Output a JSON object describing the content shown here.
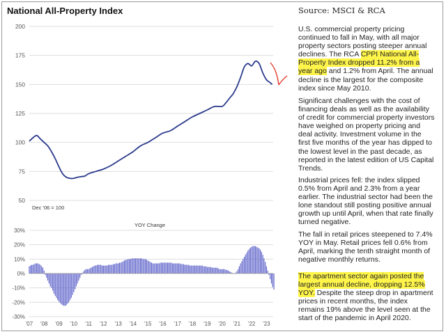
{
  "title": "National All-Property Index",
  "source": "Source: MSCI & RCA",
  "colors": {
    "line": "#2a3a8c",
    "bars": "#5a5fc8",
    "annotation_arrow": "#e03020",
    "highlight": "#fff54a",
    "grid": "#dddddd",
    "axis_text": "#555555"
  },
  "chart_data": [
    {
      "type": "line",
      "title": "National All-Property Index",
      "base_note": "Dec '06 = 100",
      "ylim": [
        50,
        200
      ],
      "yticks": [
        50,
        75,
        100,
        125,
        150,
        175,
        200
      ],
      "grid": true,
      "x": [
        2007.0,
        2007.25,
        2007.5,
        2007.75,
        2008.0,
        2008.25,
        2008.5,
        2008.75,
        2009.0,
        2009.25,
        2009.5,
        2009.75,
        2010.0,
        2010.25,
        2010.5,
        2010.75,
        2011.0,
        2011.5,
        2012.0,
        2012.5,
        2013.0,
        2013.5,
        2014.0,
        2014.5,
        2015.0,
        2015.5,
        2016.0,
        2016.5,
        2017.0,
        2017.5,
        2018.0,
        2018.5,
        2019.0,
        2019.5,
        2020.0,
        2020.25,
        2020.5,
        2020.75,
        2021.0,
        2021.25,
        2021.5,
        2021.75,
        2022.0,
        2022.25,
        2022.5,
        2022.75,
        2023.0,
        2023.2,
        2023.38
      ],
      "y": [
        101,
        104,
        106,
        103,
        100,
        97,
        92,
        86,
        79,
        73,
        70,
        69,
        69,
        70,
        70.5,
        71,
        73,
        75,
        77,
        80,
        84,
        88,
        92,
        97,
        100,
        104,
        108,
        110,
        114,
        118,
        122,
        125,
        128,
        131,
        131,
        134,
        138,
        142,
        148,
        156,
        165,
        168,
        166,
        170,
        168,
        160,
        154,
        152,
        150
      ]
    },
    {
      "type": "bar",
      "title": "YOY Change",
      "ylim": [
        -30,
        30
      ],
      "yticks": [
        -30,
        -20,
        -10,
        0,
        10,
        20,
        30
      ],
      "ytick_labels": [
        "-30%",
        "-20%",
        "-10%",
        "0%",
        "10%",
        "20%",
        "30%"
      ],
      "grid": true,
      "xticks": [
        2007,
        2008,
        2009,
        2010,
        2011,
        2012,
        2013,
        2014,
        2015,
        2016,
        2017,
        2018,
        2019,
        2020,
        2021,
        2022,
        2023
      ],
      "xtick_labels": [
        "'07",
        "'08",
        "'09",
        "'10",
        "'11",
        "'12",
        "'13",
        "'14",
        "'15",
        "'16",
        "'17",
        "'18",
        "'19",
        "'20",
        "'21",
        "'22",
        "'23"
      ],
      "start": 2007.0,
      "step_months": 1,
      "bar_color": "#5a5fc8",
      "values": [
        5,
        5.5,
        6,
        6,
        6.5,
        7,
        7,
        7,
        6.5,
        6,
        5,
        4,
        2,
        -1,
        -3,
        -5,
        -7,
        -9,
        -10,
        -12,
        -14,
        -15.5,
        -17,
        -18.5,
        -19.5,
        -20.5,
        -21.5,
        -22,
        -22.5,
        -22.5,
        -22,
        -21,
        -20,
        -18.5,
        -17,
        -15,
        -13,
        -11,
        -9,
        -7,
        -5,
        -3,
        -1,
        0.5,
        1.5,
        2.5,
        3,
        3,
        3,
        3.5,
        4,
        4.5,
        5,
        5.5,
        5.5,
        6,
        6,
        6,
        6,
        5.5,
        5.5,
        5.5,
        5.5,
        5.5,
        6,
        6,
        6,
        6,
        6.5,
        6.5,
        7,
        7,
        7,
        7.5,
        7.5,
        8,
        8.5,
        9,
        9.5,
        9.5,
        10,
        10,
        10,
        10.5,
        10.5,
        10.5,
        10.5,
        10.5,
        10.5,
        10.5,
        10.5,
        10.5,
        10,
        10,
        10,
        9.5,
        9,
        8.5,
        8,
        7.5,
        7,
        7,
        7,
        7,
        7,
        7,
        7.5,
        7.5,
        7.5,
        7.5,
        7.5,
        7.5,
        7.5,
        7.5,
        7.5,
        7.5,
        7,
        7,
        7,
        7,
        7,
        7,
        7,
        6.5,
        6.5,
        6.5,
        6,
        6,
        6,
        6,
        5.5,
        5.5,
        5.5,
        5.5,
        5.5,
        5.5,
        5.5,
        5.5,
        5.5,
        5.5,
        5.5,
        5,
        5,
        5,
        4.5,
        4.5,
        4.5,
        4.5,
        4,
        4,
        4,
        4,
        4,
        3.5,
        3,
        3,
        3,
        3,
        3,
        2.5,
        2.5,
        2,
        1.5,
        1,
        0.5,
        0,
        0,
        0.5,
        1.5,
        3,
        5,
        7,
        8.5,
        10,
        11.5,
        13,
        14.5,
        16,
        17,
        18,
        18.5,
        19,
        19,
        19,
        18.5,
        18,
        17.5,
        16.5,
        15,
        13,
        10.5,
        8,
        5,
        2,
        -1,
        -4,
        -7,
        -9.5,
        -11.2
      ]
    }
  ],
  "notes": [
    {
      "segments": [
        {
          "text": "U.S. commercial property pricing continued to fall in May, with all major property sectors posting steeper annual declines. The RCA ",
          "hl": false
        },
        {
          "text": "CPPI National All-Property Index dropped 11.2% from a year ago",
          "hl": true
        },
        {
          "text": " and 1.2% from April. The annual decline is the largest for the composite index since May 2010.",
          "hl": false
        }
      ]
    },
    {
      "segments": [
        {
          "text": "Significant challenges with the cost of financing deals as well as the availability of credit for commercial property investors have weighed on property pricing and deal activity. Investment volume in the first five months of the year has dipped to the lowest level in the past decade, as reported in the latest edition of US Capital Trends.",
          "hl": false
        }
      ]
    },
    {
      "segments": [
        {
          "text": "Industrial prices fell: the index slipped 0.5% from April and 2.3% from a year earlier. The industrial sector had been the lone standout still posting positive annual growth up until April, when that rate finally turned negative.",
          "hl": false
        }
      ]
    },
    {
      "segments": [
        {
          "text": "The fall in retail prices steepened to 7.4% YOY in May. Retail prices fell 0.6% from April, marking the tenth straight month of negative monthly returns.",
          "hl": false
        }
      ]
    },
    {
      "segments": [
        {
          "text": "The apartment sector again posted the largest annual decline, dropping 12.5% YOY.",
          "hl": true
        },
        {
          "text": " Despite the steep drop in apartment prices in recent months, the index remains 19% above the level seen at the start of the pandemic in April 2020.",
          "hl": false
        }
      ]
    }
  ]
}
